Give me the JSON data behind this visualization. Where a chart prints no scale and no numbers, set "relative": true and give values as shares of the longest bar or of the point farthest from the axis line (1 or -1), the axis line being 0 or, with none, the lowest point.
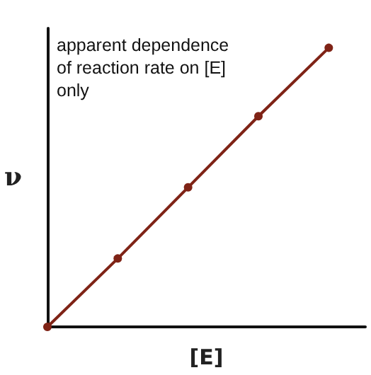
{
  "chart_data": {
    "type": "line",
    "relative": true,
    "categories": [
      null,
      null,
      null,
      null,
      null
    ],
    "series": [
      {
        "color": "#7f2316",
        "values": [
          0,
          0.245,
          0.5,
          0.755,
          1
        ]
      }
    ],
    "xlabel": "[E]",
    "ylabel": "ν",
    "marker": "circle",
    "line_style": "solid",
    "grid": false,
    "tick_labels": false,
    "annotations": [
      "apparent dependence of reaction rate on [E] only"
    ]
  }
}
